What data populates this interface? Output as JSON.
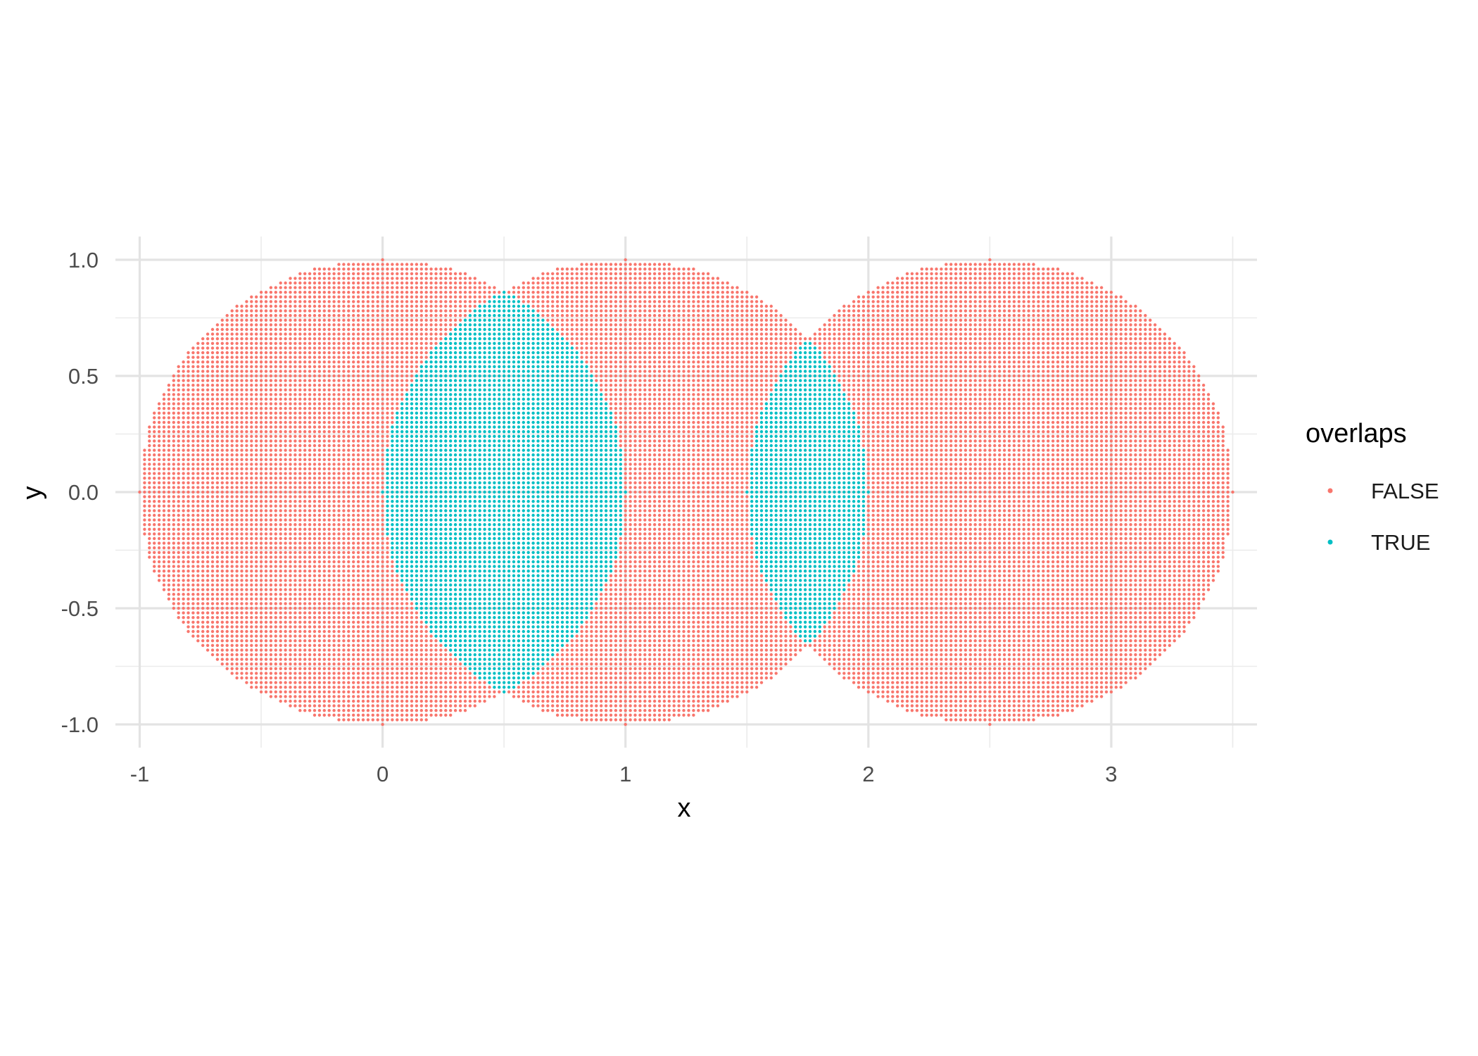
{
  "chart_data": {
    "type": "scatter",
    "title": "",
    "xlabel": "x",
    "ylabel": "y",
    "xlim": [
      -1.1,
      3.6
    ],
    "ylim": [
      -1.1,
      1.1
    ],
    "x_ticks": [
      -1,
      0,
      1,
      2,
      3
    ],
    "x_tick_labels": [
      "-1",
      "0",
      "1",
      "2",
      "3"
    ],
    "y_ticks": [
      -1.0,
      -0.5,
      0.0,
      0.5,
      1.0
    ],
    "y_tick_labels": [
      "-1.0",
      "-0.5",
      "0.0",
      "0.5",
      "1.0"
    ],
    "grid": true,
    "legend": {
      "title": "overlaps",
      "position": "right",
      "entries": [
        {
          "label": "FALSE",
          "color": "#F8766D"
        },
        {
          "label": "TRUE",
          "color": "#00BFC4"
        }
      ]
    },
    "circles": [
      {
        "center_x": 0.0,
        "center_y": 0.0,
        "radius": 1.0
      },
      {
        "center_x": 1.0,
        "center_y": 0.0,
        "radius": 1.0
      },
      {
        "center_x": 2.5,
        "center_y": 0.0,
        "radius": 1.0
      }
    ],
    "series": [
      {
        "name": "FALSE",
        "color": "#F8766D",
        "description": "points inside exactly one circle"
      },
      {
        "name": "TRUE",
        "color": "#00BFC4",
        "description": "points inside two overlapping circles"
      }
    ],
    "point_spacing": 0.02
  }
}
